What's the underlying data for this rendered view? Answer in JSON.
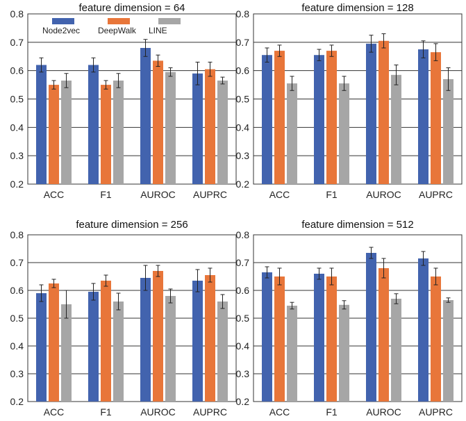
{
  "colors": {
    "Node2vec": "#4263ae",
    "DeepWalk": "#e8763a",
    "LINE": "#a6a6a6",
    "gridline": "#333333",
    "axis": "#333333"
  },
  "chart_data": [
    {
      "type": "bar",
      "title": "feature dimension = 64",
      "categories": [
        "ACC",
        "F1",
        "AUROC",
        "AUPRC"
      ],
      "ylim": [
        0.2,
        0.8
      ],
      "yticks": [
        "0.2",
        "0.3",
        "0.4",
        "0.5",
        "0.6",
        "0.7",
        "0.8"
      ],
      "grid": true,
      "legend": {
        "placement": "top-left",
        "entries": [
          "Node2vec",
          "DeepWalk",
          "LINE"
        ]
      },
      "series": [
        {
          "name": "Node2vec",
          "values": [
            0.62,
            0.62,
            0.68,
            0.59
          ],
          "errors": [
            0.025,
            0.025,
            0.03,
            0.04
          ]
        },
        {
          "name": "DeepWalk",
          "values": [
            0.55,
            0.55,
            0.635,
            0.605
          ],
          "errors": [
            0.015,
            0.015,
            0.02,
            0.025
          ]
        },
        {
          "name": "LINE",
          "values": [
            0.565,
            0.565,
            0.595,
            0.565
          ],
          "errors": [
            0.025,
            0.025,
            0.015,
            0.012
          ]
        }
      ]
    },
    {
      "type": "bar",
      "title": "feature dimension = 128",
      "categories": [
        "ACC",
        "F1",
        "AUROC",
        "AUPRC"
      ],
      "ylim": [
        0.2,
        0.8
      ],
      "yticks": [
        "0.2",
        "0.3",
        "0.4",
        "0.5",
        "0.6",
        "0.7",
        "0.8"
      ],
      "grid": true,
      "legend": null,
      "series": [
        {
          "name": "Node2vec",
          "values": [
            0.655,
            0.655,
            0.695,
            0.675
          ],
          "errors": [
            0.025,
            0.02,
            0.03,
            0.03
          ]
        },
        {
          "name": "DeepWalk",
          "values": [
            0.67,
            0.67,
            0.705,
            0.665
          ],
          "errors": [
            0.02,
            0.02,
            0.025,
            0.03
          ]
        },
        {
          "name": "LINE",
          "values": [
            0.555,
            0.555,
            0.585,
            0.57
          ],
          "errors": [
            0.025,
            0.025,
            0.035,
            0.04
          ]
        }
      ]
    },
    {
      "type": "bar",
      "title": "feature dimension = 256",
      "categories": [
        "ACC",
        "F1",
        "AUROC",
        "AUPRC"
      ],
      "ylim": [
        0.2,
        0.8
      ],
      "yticks": [
        "0.2",
        "0.3",
        "0.4",
        "0.5",
        "0.6",
        "0.7",
        "0.8"
      ],
      "grid": true,
      "legend": null,
      "series": [
        {
          "name": "Node2vec",
          "values": [
            0.59,
            0.595,
            0.645,
            0.635
          ],
          "errors": [
            0.03,
            0.03,
            0.045,
            0.04
          ]
        },
        {
          "name": "DeepWalk",
          "values": [
            0.625,
            0.635,
            0.67,
            0.655
          ],
          "errors": [
            0.015,
            0.02,
            0.02,
            0.025
          ]
        },
        {
          "name": "LINE",
          "values": [
            0.55,
            0.56,
            0.58,
            0.56
          ],
          "errors": [
            0.05,
            0.03,
            0.025,
            0.025
          ]
        }
      ]
    },
    {
      "type": "bar",
      "title": "feature dimension = 512",
      "categories": [
        "ACC",
        "F1",
        "AUROC",
        "AUPRC"
      ],
      "ylim": [
        0.2,
        0.8
      ],
      "yticks": [
        "0.2",
        "0.3",
        "0.4",
        "0.5",
        "0.6",
        "0.7",
        "0.8"
      ],
      "grid": true,
      "legend": null,
      "series": [
        {
          "name": "Node2vec",
          "values": [
            0.665,
            0.66,
            0.735,
            0.715
          ],
          "errors": [
            0.02,
            0.02,
            0.02,
            0.025
          ]
        },
        {
          "name": "DeepWalk",
          "values": [
            0.65,
            0.65,
            0.68,
            0.65
          ],
          "errors": [
            0.03,
            0.03,
            0.035,
            0.03
          ]
        },
        {
          "name": "LINE",
          "values": [
            0.545,
            0.548,
            0.57,
            0.565
          ],
          "errors": [
            0.012,
            0.015,
            0.018,
            0.008
          ]
        }
      ]
    }
  ]
}
